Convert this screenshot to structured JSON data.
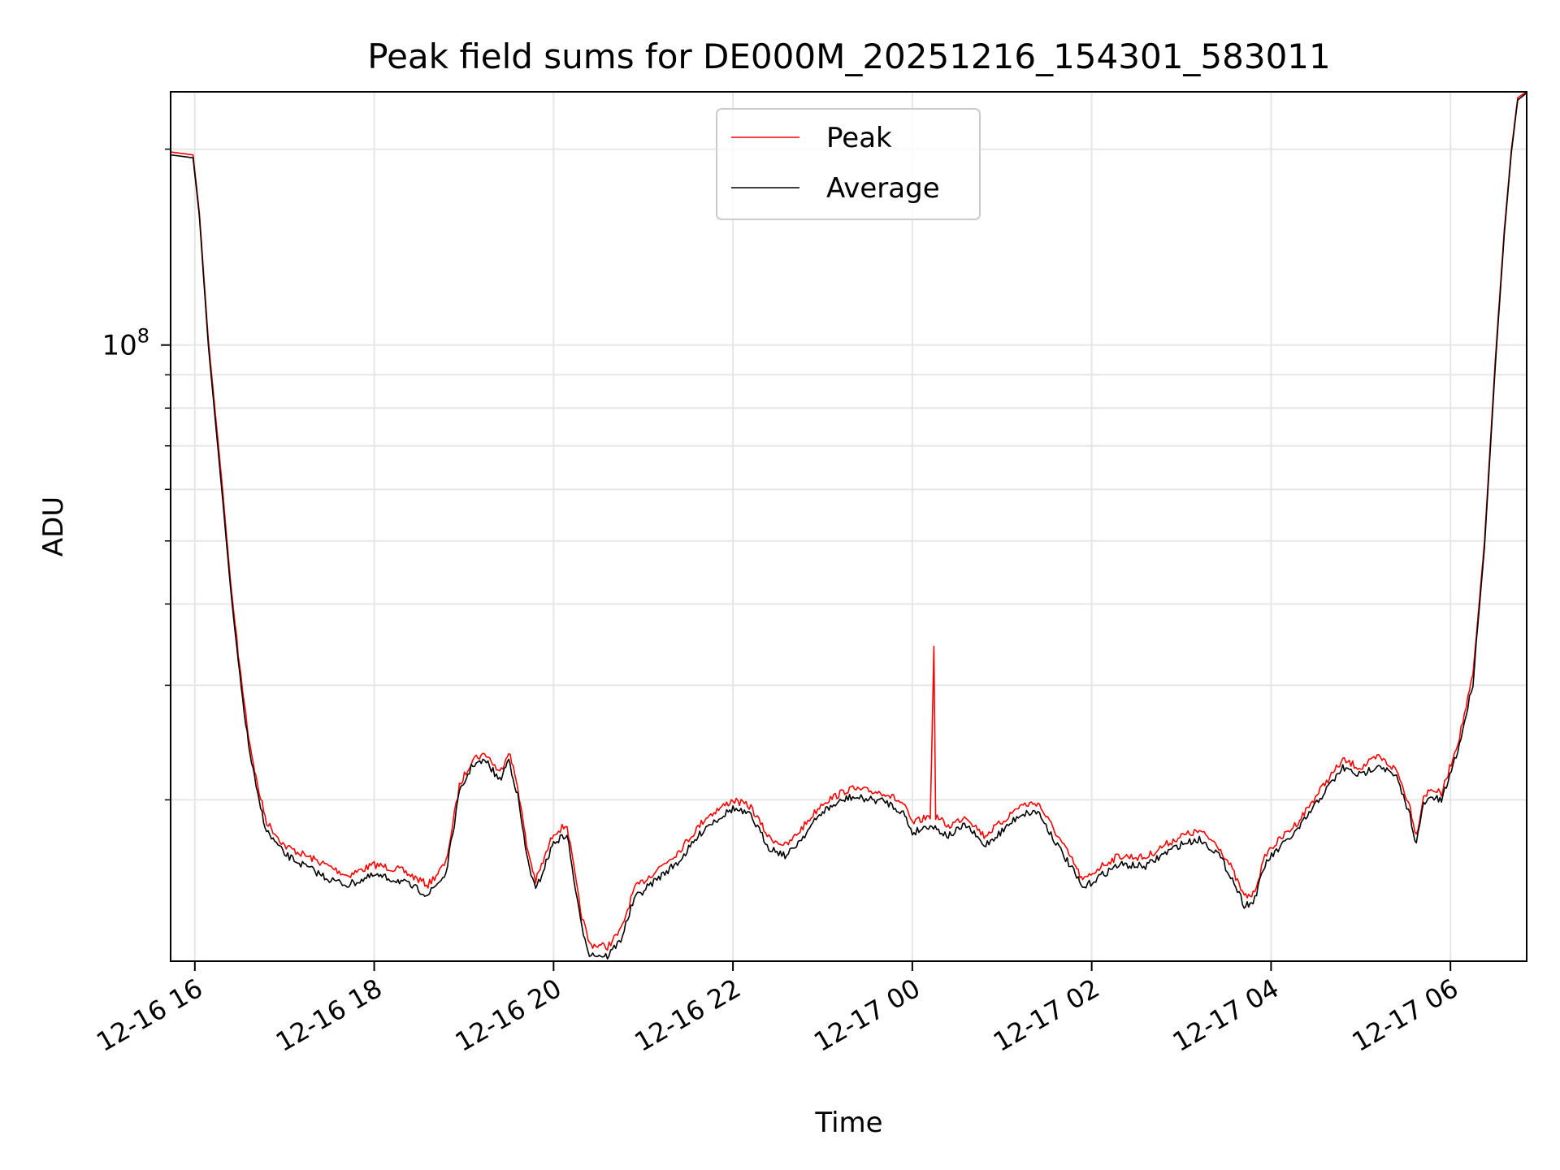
{
  "chart_data": {
    "type": "line",
    "title": "Peak field sums for DE000M_20251216_154301_583011",
    "xlabel": "Time",
    "ylabel": "ADU",
    "yscale": "log",
    "y_tick_label": {
      "base": "10",
      "exp": "8"
    },
    "grid": true,
    "legend_position": "top-center",
    "x_units": "hours since 2025-12-16 00:00",
    "xlim": [
      15.73,
      30.85
    ],
    "ylim": [
      11300000,
      245000000
    ],
    "x_ticks": [
      {
        "x": 16,
        "label": "12-16 16"
      },
      {
        "x": 18,
        "label": "12-16 18"
      },
      {
        "x": 20,
        "label": "12-16 20"
      },
      {
        "x": 22,
        "label": "12-16 22"
      },
      {
        "x": 24,
        "label": "12-17 00"
      },
      {
        "x": 26,
        "label": "12-17 02"
      },
      {
        "x": 28,
        "label": "12-17 04"
      },
      {
        "x": 30,
        "label": "12-17 06"
      }
    ],
    "series": [
      {
        "name": "Peak",
        "color": "#ff0000",
        "points": [
          [
            15.73,
            198000000
          ],
          [
            15.98,
            196000000
          ],
          [
            16.05,
            160000000
          ],
          [
            16.15,
            102000000
          ],
          [
            16.3,
            62000000
          ],
          [
            16.4,
            43000000
          ],
          [
            16.5,
            32000000
          ],
          [
            16.6,
            25000000
          ],
          [
            16.7,
            21000000
          ],
          [
            16.8,
            18500000
          ],
          [
            17.0,
            17000000
          ],
          [
            17.2,
            16500000
          ],
          [
            17.5,
            15800000
          ],
          [
            17.7,
            15300000
          ],
          [
            18.0,
            15900000
          ],
          [
            18.3,
            15600000
          ],
          [
            18.6,
            14800000
          ],
          [
            18.8,
            16000000
          ],
          [
            18.95,
            21000000
          ],
          [
            19.1,
            23200000
          ],
          [
            19.25,
            23500000
          ],
          [
            19.4,
            22000000
          ],
          [
            19.5,
            23800000
          ],
          [
            19.6,
            21000000
          ],
          [
            19.7,
            17000000
          ],
          [
            19.8,
            15000000
          ],
          [
            19.9,
            16300000
          ],
          [
            20.0,
            17800000
          ],
          [
            20.15,
            18300000
          ],
          [
            20.3,
            13500000
          ],
          [
            20.4,
            12000000
          ],
          [
            20.6,
            11900000
          ],
          [
            20.75,
            12600000
          ],
          [
            20.9,
            14600000
          ],
          [
            21.1,
            15400000
          ],
          [
            21.4,
            16700000
          ],
          [
            21.7,
            18800000
          ],
          [
            22.0,
            20000000
          ],
          [
            22.2,
            19500000
          ],
          [
            22.4,
            17500000
          ],
          [
            22.6,
            17000000
          ],
          [
            22.8,
            18300000
          ],
          [
            23.0,
            19800000
          ],
          [
            23.3,
            20800000
          ],
          [
            23.7,
            20500000
          ],
          [
            23.9,
            19700000
          ],
          [
            24.0,
            18400000
          ],
          [
            24.2,
            18900000
          ],
          [
            24.24,
            34000000
          ],
          [
            24.26,
            18900000
          ],
          [
            24.4,
            18200000
          ],
          [
            24.6,
            18900000
          ],
          [
            24.8,
            17600000
          ],
          [
            25.0,
            18500000
          ],
          [
            25.2,
            19600000
          ],
          [
            25.4,
            19800000
          ],
          [
            25.6,
            17800000
          ],
          [
            25.8,
            16000000
          ],
          [
            25.9,
            15000000
          ],
          [
            26.1,
            15800000
          ],
          [
            26.3,
            16400000
          ],
          [
            26.6,
            16300000
          ],
          [
            26.8,
            17000000
          ],
          [
            27.0,
            17600000
          ],
          [
            27.2,
            17900000
          ],
          [
            27.4,
            17100000
          ],
          [
            27.55,
            15800000
          ],
          [
            27.7,
            14200000
          ],
          [
            27.8,
            14300000
          ],
          [
            27.95,
            16600000
          ],
          [
            28.3,
            18500000
          ],
          [
            28.6,
            21200000
          ],
          [
            28.8,
            23000000
          ],
          [
            29.0,
            22400000
          ],
          [
            29.2,
            23300000
          ],
          [
            29.4,
            22200000
          ],
          [
            29.55,
            19500000
          ],
          [
            29.62,
            17600000
          ],
          [
            29.7,
            20300000
          ],
          [
            29.8,
            20800000
          ],
          [
            29.9,
            20400000
          ],
          [
            30.1,
            25000000
          ],
          [
            30.25,
            31000000
          ],
          [
            30.38,
            50000000
          ],
          [
            30.5,
            95000000
          ],
          [
            30.6,
            150000000
          ],
          [
            30.68,
            200000000
          ],
          [
            30.75,
            240000000
          ],
          [
            30.85,
            245000000
          ]
        ]
      },
      {
        "name": "Average",
        "color": "#000000",
        "points": [
          [
            15.73,
            196000000
          ],
          [
            15.98,
            194000000
          ],
          [
            16.05,
            158000000
          ],
          [
            16.15,
            100000000
          ],
          [
            16.3,
            60000000
          ],
          [
            16.4,
            42000000
          ],
          [
            16.5,
            31000000
          ],
          [
            16.6,
            24200000
          ],
          [
            16.7,
            20300000
          ],
          [
            16.8,
            17900000
          ],
          [
            17.0,
            16500000
          ],
          [
            17.2,
            15900000
          ],
          [
            17.5,
            15100000
          ],
          [
            17.7,
            14800000
          ],
          [
            18.0,
            15300000
          ],
          [
            18.3,
            15000000
          ],
          [
            18.6,
            14300000
          ],
          [
            18.8,
            15400000
          ],
          [
            18.95,
            20500000
          ],
          [
            19.1,
            22700000
          ],
          [
            19.25,
            22900000
          ],
          [
            19.4,
            21400000
          ],
          [
            19.5,
            23100000
          ],
          [
            19.6,
            20300000
          ],
          [
            19.7,
            16400000
          ],
          [
            19.8,
            14500000
          ],
          [
            19.9,
            15800000
          ],
          [
            20.0,
            17200000
          ],
          [
            20.15,
            17700000
          ],
          [
            20.3,
            13000000
          ],
          [
            20.4,
            11600000
          ],
          [
            20.6,
            11500000
          ],
          [
            20.75,
            12200000
          ],
          [
            20.9,
            14100000
          ],
          [
            21.1,
            14900000
          ],
          [
            21.4,
            16100000
          ],
          [
            21.7,
            18200000
          ],
          [
            22.0,
            19400000
          ],
          [
            22.2,
            18900000
          ],
          [
            22.4,
            16900000
          ],
          [
            22.6,
            16400000
          ],
          [
            22.8,
            17700000
          ],
          [
            23.0,
            19200000
          ],
          [
            23.3,
            20200000
          ],
          [
            23.7,
            19900000
          ],
          [
            23.9,
            19100000
          ],
          [
            24.0,
            17800000
          ],
          [
            24.2,
            18300000
          ],
          [
            24.4,
            17600000
          ],
          [
            24.6,
            18300000
          ],
          [
            24.8,
            17000000
          ],
          [
            25.0,
            17900000
          ],
          [
            25.2,
            19000000
          ],
          [
            25.4,
            19200000
          ],
          [
            25.6,
            17200000
          ],
          [
            25.8,
            15500000
          ],
          [
            25.9,
            14600000
          ],
          [
            26.1,
            15300000
          ],
          [
            26.3,
            15900000
          ],
          [
            26.6,
            15800000
          ],
          [
            26.8,
            16500000
          ],
          [
            27.0,
            17100000
          ],
          [
            27.2,
            17400000
          ],
          [
            27.4,
            16600000
          ],
          [
            27.55,
            15300000
          ],
          [
            27.7,
            13800000
          ],
          [
            27.8,
            13900000
          ],
          [
            27.95,
            16100000
          ],
          [
            28.3,
            18000000
          ],
          [
            28.6,
            20600000
          ],
          [
            28.8,
            22400000
          ],
          [
            29.0,
            21800000
          ],
          [
            29.2,
            22700000
          ],
          [
            29.4,
            21600000
          ],
          [
            29.55,
            18900000
          ],
          [
            29.62,
            17100000
          ],
          [
            29.7,
            19700000
          ],
          [
            29.8,
            20200000
          ],
          [
            29.9,
            19900000
          ],
          [
            30.1,
            24300000
          ],
          [
            30.25,
            30200000
          ],
          [
            30.38,
            49000000
          ],
          [
            30.5,
            93000000
          ],
          [
            30.6,
            148000000
          ],
          [
            30.68,
            198000000
          ],
          [
            30.75,
            238000000
          ],
          [
            30.85,
            244000000
          ]
        ]
      }
    ]
  }
}
